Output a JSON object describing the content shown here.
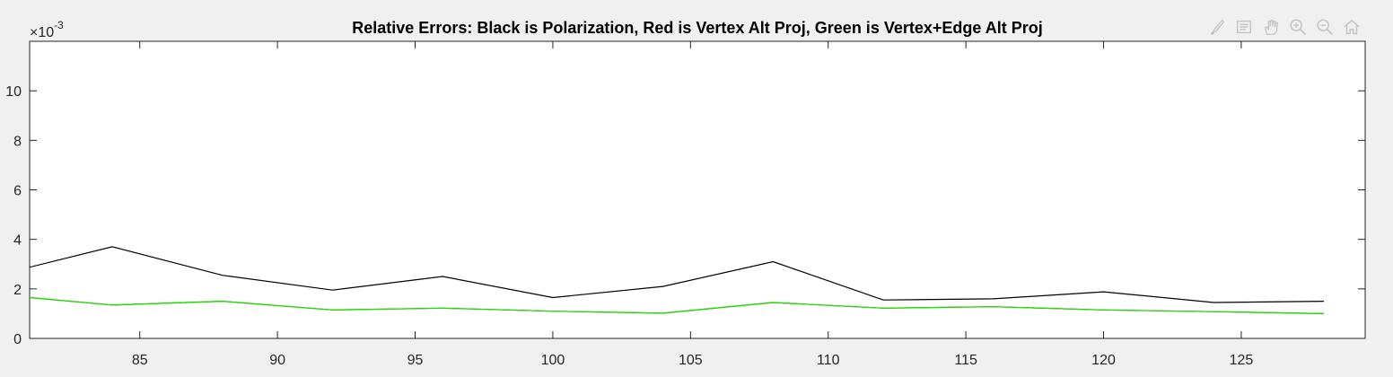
{
  "toolbar": {
    "icons": [
      "brush-icon",
      "data-tips-icon",
      "pan-hand-icon",
      "zoom-in-icon",
      "zoom-out-icon",
      "home-icon"
    ]
  },
  "chart_data": {
    "type": "line",
    "title": "Relative Errors: Black is Polarization, Red is Vertex Alt Proj, Green is Vertex+Edge Alt Proj",
    "xlabel": "",
    "ylabel": "",
    "y_exponent_base": "10",
    "y_exponent_power": "-3",
    "xlim": [
      81,
      129.5
    ],
    "ylim": [
      0,
      12
    ],
    "x_ticks": [
      85,
      90,
      95,
      100,
      105,
      110,
      115,
      120,
      125
    ],
    "x_tick_labels": [
      "85",
      "90",
      "95",
      "100",
      "105",
      "110",
      "115",
      "120",
      "125"
    ],
    "y_ticks": [
      0,
      2,
      4,
      6,
      8,
      10
    ],
    "y_tick_labels": [
      "0",
      "2",
      "4",
      "6",
      "8",
      "10"
    ],
    "grid": false,
    "x": [
      80,
      84,
      88,
      92,
      96,
      100,
      104,
      108,
      112,
      116,
      120,
      124,
      128
    ],
    "series": [
      {
        "color": "#000000",
        "values": [
          2.6,
          3.7,
          2.55,
          1.95,
          2.5,
          1.65,
          2.1,
          3.1,
          1.55,
          1.6,
          1.88,
          1.45,
          1.5
        ]
      },
      {
        "color": "#ff0000",
        "values": [
          1.75,
          1.35,
          1.5,
          1.15,
          1.22,
          1.1,
          1.02,
          1.45,
          1.22,
          1.28,
          1.15,
          1.08,
          1.0
        ]
      },
      {
        "color": "#00ee00",
        "values": [
          1.75,
          1.35,
          1.5,
          1.15,
          1.22,
          1.1,
          1.02,
          1.45,
          1.22,
          1.28,
          1.15,
          1.08,
          1.0
        ]
      }
    ]
  }
}
